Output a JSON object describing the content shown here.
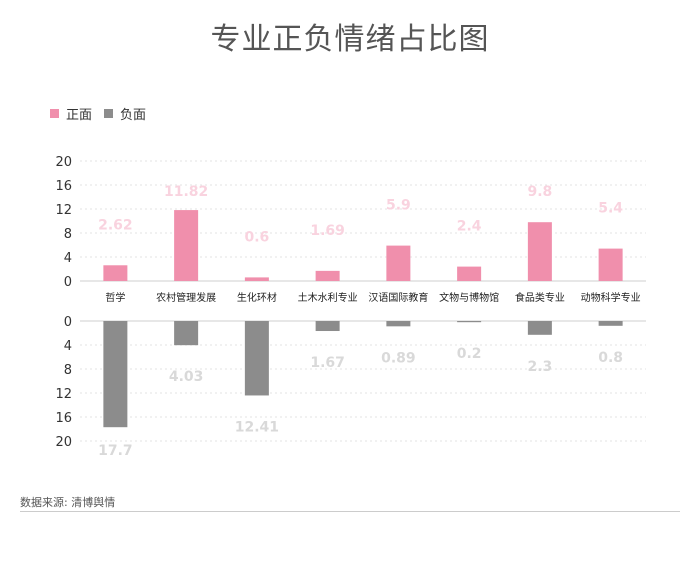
{
  "title": "专业正负情绪占比图",
  "legend": {
    "positive_label": "正面",
    "negative_label": "负面"
  },
  "colors": {
    "positive": "#f08fac",
    "negative": "#8c8c8c",
    "positive_label": "#f9d3df",
    "negative_label": "#d9d9d9"
  },
  "source": "数据来源: 清博舆情",
  "chart_data": {
    "type": "bar",
    "title": "专业正负情绪占比图",
    "categories": [
      "哲学",
      "农村管理发展",
      "生化环材",
      "土木水利专业",
      "汉语国际教育",
      "文物与博物馆",
      "食品类专业",
      "动物科学专业"
    ],
    "series": [
      {
        "name": "正面",
        "values": [
          2.62,
          11.82,
          0.6,
          1.69,
          5.9,
          2.4,
          9.8,
          5.4
        ]
      },
      {
        "name": "负面",
        "values": [
          17.7,
          4.03,
          12.41,
          1.67,
          0.89,
          0.2,
          2.3,
          0.8
        ]
      }
    ],
    "ylim": [
      0,
      20
    ],
    "yticks": [
      0,
      4,
      8,
      12,
      16,
      20
    ],
    "ytick_labels": [
      "0",
      "4",
      "8",
      "12",
      "16",
      "20"
    ],
    "positive_value_labels": [
      "2.62",
      "11.82",
      "0.6",
      "1.69",
      "5.9",
      "2.4",
      "9.8",
      "5.4"
    ],
    "negative_value_labels": [
      "17.7",
      "4.03",
      "12.41",
      "1.67",
      "0.89",
      "0.2",
      "2.3",
      "0.8"
    ],
    "grid": true,
    "legend_position": "top-left"
  }
}
